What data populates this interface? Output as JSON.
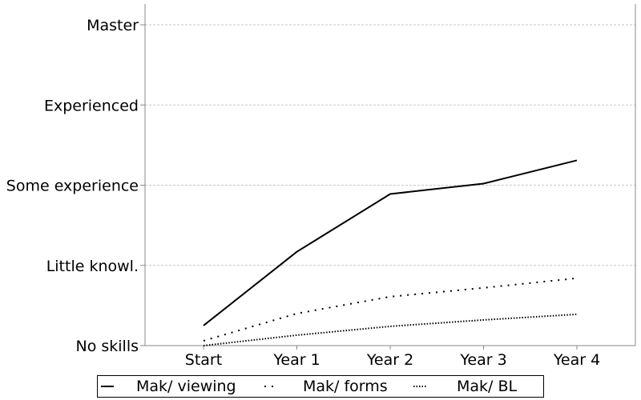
{
  "chart_data": {
    "type": "line",
    "categories": [
      "Start",
      "Year 1",
      "Year 2",
      "Year 3",
      "Year 4"
    ],
    "y_tick_labels": [
      "No skills",
      "Little knowl.",
      "Some experience",
      "Experienced",
      "Master"
    ],
    "ylim": [
      0,
      4
    ],
    "grid": true,
    "legend_position": "bottom",
    "series": [
      {
        "name": "Mak/ viewing",
        "style": "solid",
        "values": [
          0.25,
          1.17,
          1.89,
          2.02,
          2.31
        ]
      },
      {
        "name": "Mak/ forms",
        "style": "dotted",
        "values": [
          0.06,
          0.4,
          0.61,
          0.72,
          0.84
        ]
      },
      {
        "name": "Mak/ BL",
        "style": "dense-dotted",
        "values": [
          0.0,
          0.13,
          0.24,
          0.32,
          0.39
        ]
      }
    ]
  }
}
